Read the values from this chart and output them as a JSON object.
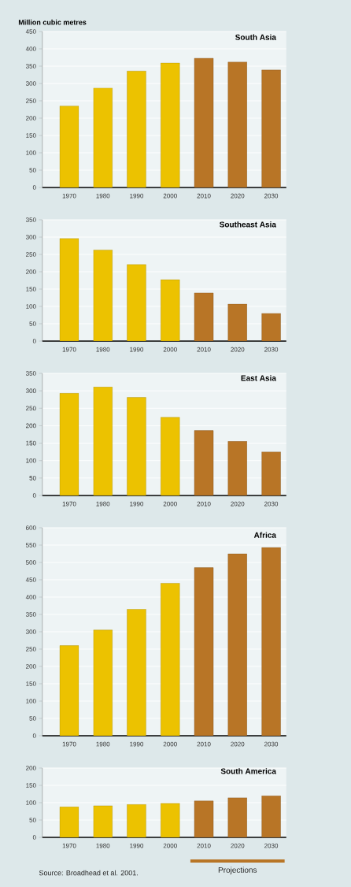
{
  "chart_data": [
    {
      "type": "bar",
      "title": "South Asia",
      "ylabel": "Million cubic metres",
      "categories": [
        "1970",
        "1980",
        "1990",
        "2000",
        "2010",
        "2020",
        "2030"
      ],
      "values": [
        235,
        287,
        336,
        359,
        373,
        362,
        339
      ],
      "colors": [
        "#ecc200",
        "#ecc200",
        "#ecc200",
        "#ecc200",
        "#b87526",
        "#b87526",
        "#b87526"
      ],
      "ylim": [
        0,
        450
      ],
      "yticks": [
        0,
        50,
        100,
        150,
        200,
        250,
        300,
        350,
        400,
        450
      ],
      "grid": "y"
    },
    {
      "type": "bar",
      "title": "Southeast Asia",
      "categories": [
        "1970",
        "1980",
        "1990",
        "2000",
        "2010",
        "2020",
        "2030"
      ],
      "values": [
        296,
        263,
        221,
        177,
        139,
        107,
        80
      ],
      "colors": [
        "#ecc200",
        "#ecc200",
        "#ecc200",
        "#ecc200",
        "#b87526",
        "#b87526",
        "#b87526"
      ],
      "ylim": [
        0,
        350
      ],
      "yticks": [
        0,
        50,
        100,
        150,
        200,
        250,
        300,
        350
      ],
      "grid": "y"
    },
    {
      "type": "bar",
      "title": "East Asia",
      "categories": [
        "1970",
        "1980",
        "1990",
        "2000",
        "2010",
        "2020",
        "2030"
      ],
      "values": [
        293,
        311,
        281,
        224,
        186,
        155,
        125
      ],
      "colors": [
        "#ecc200",
        "#ecc200",
        "#ecc200",
        "#ecc200",
        "#b87526",
        "#b87526",
        "#b87526"
      ],
      "ylim": [
        0,
        350
      ],
      "yticks": [
        0,
        50,
        100,
        150,
        200,
        250,
        300,
        350
      ],
      "grid": "y"
    },
    {
      "type": "bar",
      "title": "Africa",
      "categories": [
        "1970",
        "1980",
        "1990",
        "2000",
        "2010",
        "2020",
        "2030"
      ],
      "values": [
        260,
        305,
        365,
        440,
        485,
        525,
        543
      ],
      "colors": [
        "#ecc200",
        "#ecc200",
        "#ecc200",
        "#ecc200",
        "#b87526",
        "#b87526",
        "#b87526"
      ],
      "ylim": [
        0,
        600
      ],
      "yticks": [
        0,
        50,
        100,
        150,
        200,
        250,
        300,
        350,
        400,
        450,
        500,
        550,
        600
      ],
      "grid": "y"
    },
    {
      "type": "bar",
      "title": "South America",
      "categories": [
        "1970",
        "1980",
        "1990",
        "2000",
        "2010",
        "2020",
        "2030"
      ],
      "values": [
        88,
        91,
        95,
        98,
        105,
        114,
        120
      ],
      "colors": [
        "#ecc200",
        "#ecc200",
        "#ecc200",
        "#ecc200",
        "#b87526",
        "#b87526",
        "#b87526"
      ],
      "ylim": [
        0,
        200
      ],
      "yticks": [
        0,
        50,
        100,
        150,
        200
      ],
      "grid": "y",
      "annotations": [
        "Source: Broadhead et al. 2001.",
        "Projections"
      ]
    }
  ]
}
